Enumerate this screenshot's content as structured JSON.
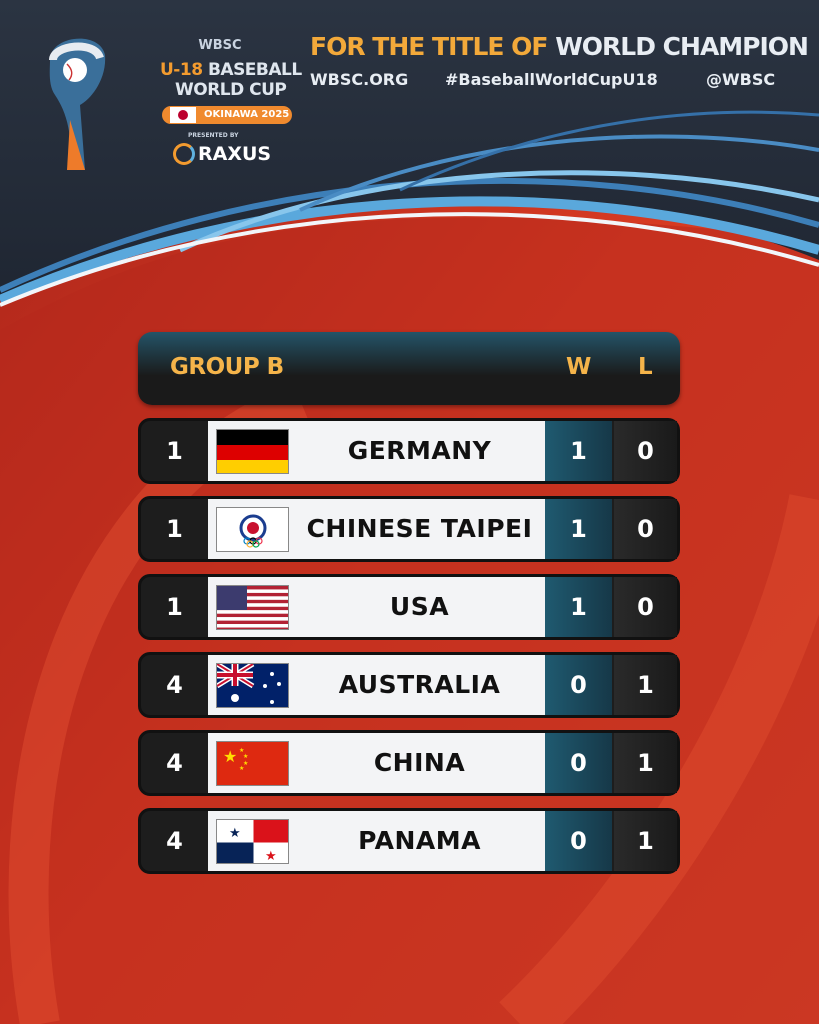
{
  "brand": {
    "org": "WBSC",
    "event_line1_accent": "U-18",
    "event_line1": "BASEBALL",
    "event_line2": "WORLD CUP",
    "location": "OKINAWA 2025",
    "presented_by": "PRESENTED BY",
    "sponsor": "RAXUS"
  },
  "header": {
    "tagline_part1": "FOR THE TITLE OF ",
    "tagline_part2": "WORLD CHAMPION",
    "website": "WBSC.ORG",
    "hashtag": "#BaseballWorldCupU18",
    "handle": "@WBSC"
  },
  "standings": {
    "group": "GROUP B",
    "col_w": "W",
    "col_l": "L",
    "rows": [
      {
        "rank": "1",
        "team": "GERMANY",
        "flag": "germany-flag",
        "w": "1",
        "l": "0"
      },
      {
        "rank": "1",
        "team": "CHINESE TAIPEI",
        "flag": "chinese-taipei-olympic-flag",
        "w": "1",
        "l": "0"
      },
      {
        "rank": "1",
        "team": "USA",
        "flag": "usa-flag",
        "w": "1",
        "l": "0"
      },
      {
        "rank": "4",
        "team": "AUSTRALIA",
        "flag": "australia-flag",
        "w": "0",
        "l": "1"
      },
      {
        "rank": "4",
        "team": "CHINA",
        "flag": "china-flag",
        "w": "0",
        "l": "1"
      },
      {
        "rank": "4",
        "team": "PANAMA",
        "flag": "panama-flag",
        "w": "0",
        "l": "1"
      }
    ]
  },
  "colors": {
    "accent": "#f5b44a",
    "background_red": "#c8321f",
    "navy": "#27303f",
    "w_column": "#1f5a70"
  }
}
